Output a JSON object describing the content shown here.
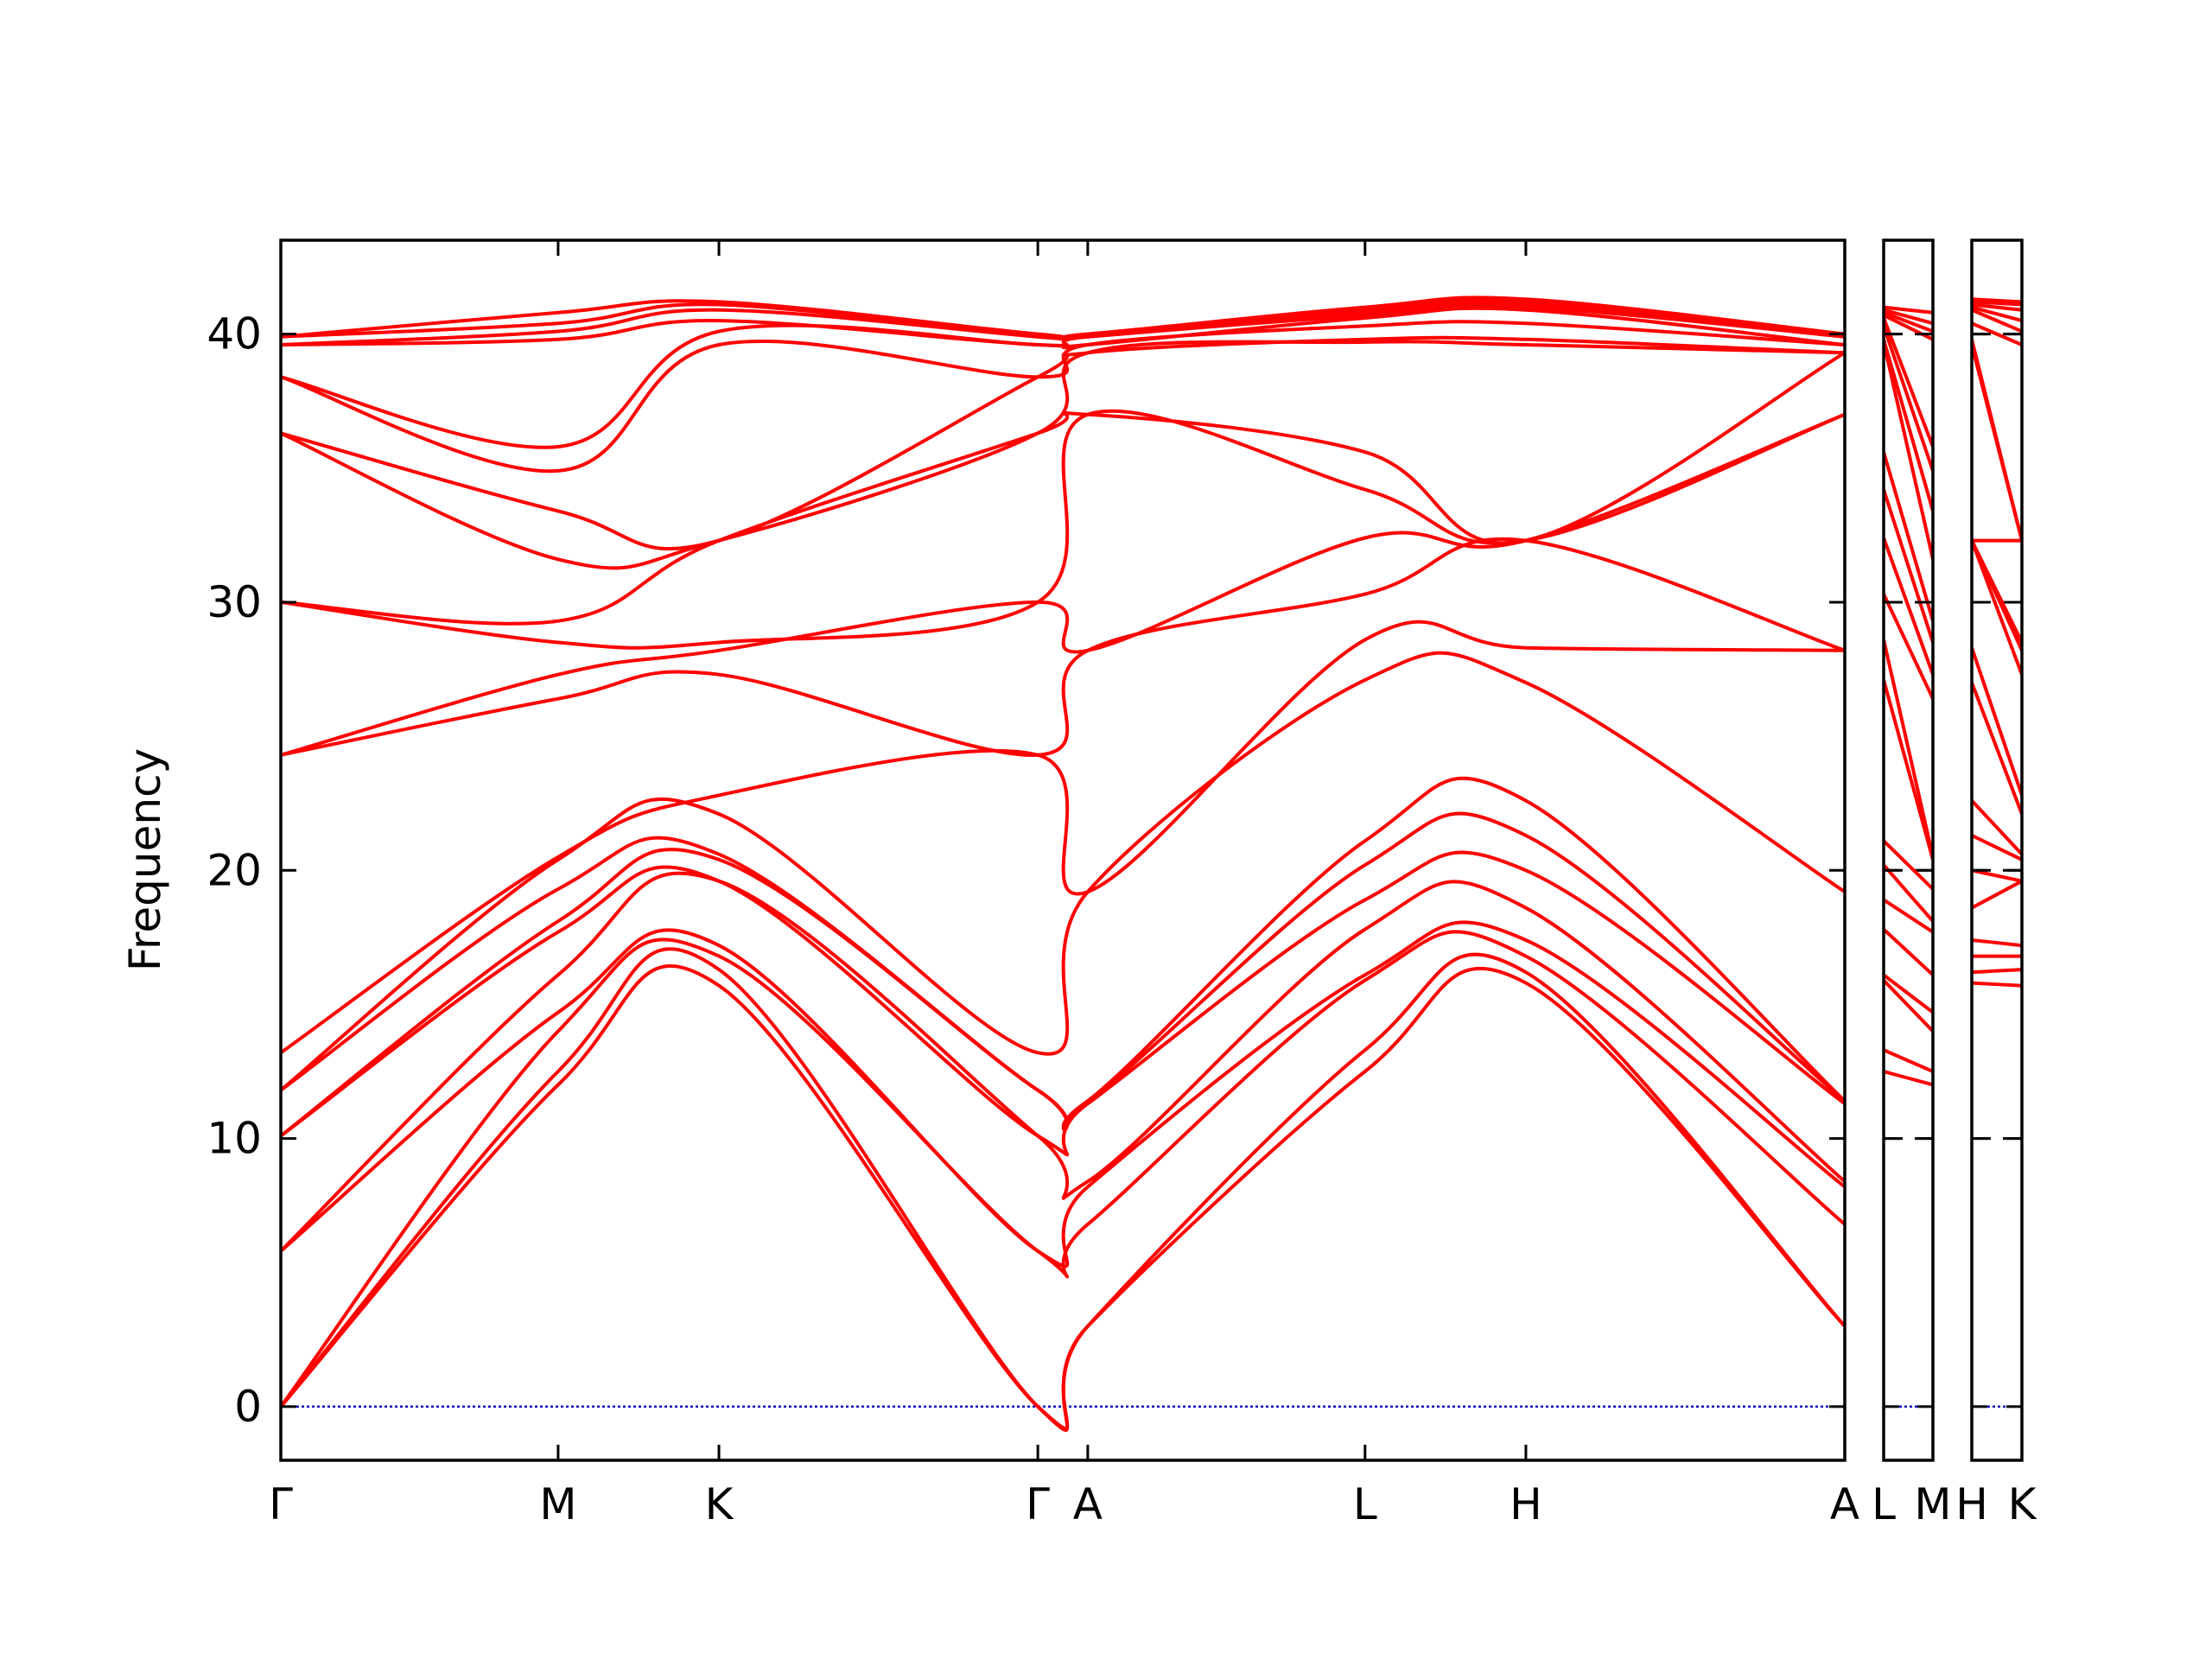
{
  "chart_data": {
    "type": "line",
    "title": "",
    "ylabel": "Frequency",
    "xlabel": "",
    "ylim": [
      -2,
      43.5
    ],
    "y_ticks": [
      "0",
      "10",
      "20",
      "30",
      "40"
    ],
    "y_tick_values": [
      0,
      10,
      20,
      30,
      40
    ],
    "grid": false,
    "band_color": "#ff0000",
    "zero_line_color": "#0000cc",
    "panels": [
      {
        "path": [
          "Γ",
          "M",
          "K",
          "Γ",
          "A",
          "L",
          "H",
          "A"
        ],
        "x_ticks": [
          {
            "label": "Γ",
            "x": 0
          },
          {
            "label": "M",
            "x": 1
          },
          {
            "label": "K",
            "x": 1.58
          },
          {
            "label": "Γ",
            "x": 2.73
          },
          {
            "label": "A",
            "x": 2.91
          },
          {
            "label": "L",
            "x": 3.91
          },
          {
            "label": "H",
            "x": 4.49
          },
          {
            "label": "A",
            "x": 5.64
          }
        ],
        "bands": [
          {
            "x": [
              0,
              1,
              1.58,
              2.73,
              2.91,
              3.91,
              4.49,
              5.64
            ],
            "y": [
              0,
              12,
              15.7,
              0,
              3,
              12.5,
              15.8,
              3
            ]
          },
          {
            "x": [
              0,
              1,
              1.58,
              2.73,
              2.91,
              3.91,
              4.49,
              5.64
            ],
            "y": [
              0,
              12.5,
              16.3,
              0,
              3,
              13.3,
              16.2,
              3
            ]
          },
          {
            "x": [
              0,
              1,
              1.58,
              2.73,
              2.91,
              3.91,
              4.49,
              5.64
            ],
            "y": [
              0,
              14,
              16.8,
              5.8,
              6.8,
              15.9,
              16.8,
              6.8
            ]
          },
          {
            "x": [
              0,
              1,
              1.58,
              2.73,
              2.91,
              3.91,
              4.49,
              5.64
            ],
            "y": [
              5.8,
              14.7,
              17.2,
              5.8,
              8.2,
              16.1,
              17.4,
              8.2
            ]
          },
          {
            "x": [
              0,
              1,
              1.58,
              2.73,
              2.91,
              3.91,
              4.49,
              5.64
            ],
            "y": [
              5.8,
              16.1,
              19.6,
              10.1,
              8.4,
              17.8,
              18.6,
              8.4
            ]
          },
          {
            "x": [
              0,
              1,
              1.58,
              2.73,
              2.91,
              3.91,
              4.49,
              5.64
            ],
            "y": [
              10.1,
              17.7,
              19.6,
              10.1,
              11.3,
              18.9,
              20,
              11.3
            ]
          },
          {
            "x": [
              0,
              1,
              1.58,
              2.73,
              2.91,
              3.91,
              4.49,
              5.64
            ],
            "y": [
              10.1,
              18.1,
              20.4,
              11.8,
              11.4,
              20.2,
              21.3,
              11.4
            ]
          },
          {
            "x": [
              0,
              1,
              1.58,
              2.73,
              2.91,
              3.91,
              4.49,
              5.64
            ],
            "y": [
              11.8,
              19.3,
              20.6,
              11.8,
              11.4,
              21.1,
              22.6,
              11.4
            ]
          },
          {
            "x": [
              0,
              1,
              1.58,
              2.73,
              2.91,
              3.91,
              4.49,
              5.64
            ],
            "y": [
              11.8,
              20.4,
              22.1,
              13.2,
              19.2,
              27.1,
              27,
              19.2
            ]
          },
          {
            "x": [
              0,
              1,
              1.58,
              2.73,
              2.91,
              3.91,
              4.49,
              5.64
            ],
            "y": [
              13.2,
              20.5,
              22.8,
              24.3,
              19.2,
              28.6,
              28.3,
              28.2
            ]
          },
          {
            "x": [
              0,
              1,
              1.58,
              2.73,
              2.91,
              3.91,
              4.49,
              5.64
            ],
            "y": [
              24.3,
              26.4,
              27.3,
              24.3,
              28.2,
              30.3,
              32.3,
              28.2
            ]
          },
          {
            "x": [
              0,
              1,
              1.58,
              2.73,
              2.91,
              3.91,
              4.49,
              5.64
            ],
            "y": [
              24.3,
              27.3,
              28.2,
              30,
              28.2,
              32.4,
              32.3,
              37
            ]
          },
          {
            "x": [
              0,
              1,
              1.58,
              2.73,
              2.91,
              3.91,
              4.49,
              5.64
            ],
            "y": [
              30,
              28.5,
              28.5,
              30,
              37,
              34.2,
              32.3,
              37
            ]
          },
          {
            "x": [
              0,
              1,
              1.58,
              2.73,
              2.91,
              3.91,
              4.49,
              5.64
            ],
            "y": [
              30,
              29.3,
              32.3,
              36.3,
              37,
              35.6,
              32.3,
              39.3
            ]
          },
          {
            "x": [
              0,
              1,
              1.58,
              2.73,
              2.91,
              3.91,
              4.49,
              5.64
            ],
            "y": [
              36.3,
              31.6,
              32.3,
              36.3,
              39.3,
              39.7,
              39.6,
              39.3
            ]
          },
          {
            "x": [
              0,
              1,
              1.58,
              2.73,
              2.91,
              3.91,
              4.49,
              5.64
            ],
            "y": [
              36.3,
              33.4,
              32.3,
              38.4,
              39.3,
              39.8,
              39.8,
              39.3
            ]
          },
          {
            "x": [
              0,
              1,
              1.58,
              2.73,
              2.91,
              3.91,
              4.49,
              5.64
            ],
            "y": [
              38.4,
              34.9,
              39.6,
              38.4,
              39.6,
              40.3,
              40.4,
              39.6
            ]
          },
          {
            "x": [
              0,
              1,
              1.58,
              2.73,
              2.91,
              3.91,
              4.49,
              5.64
            ],
            "y": [
              38.4,
              35.8,
              40.1,
              39.6,
              39.6,
              40.6,
              40.9,
              39.6
            ]
          },
          {
            "x": [
              0,
              1,
              1.58,
              2.73,
              2.91,
              3.91,
              4.49,
              5.64
            ],
            "y": [
              39.6,
              39.8,
              40.5,
              39.6,
              39.9,
              40.7,
              41,
              39.9
            ]
          },
          {
            "x": [
              0,
              1,
              1.58,
              2.73,
              2.91,
              3.91,
              4.49,
              5.64
            ],
            "y": [
              39.6,
              40.1,
              40.9,
              39.9,
              39.9,
              40.8,
              41.1,
              39.9
            ]
          },
          {
            "x": [
              0,
              1,
              1.58,
              2.73,
              2.91,
              3.91,
              4.49,
              5.64
            ],
            "y": [
              39.9,
              40.4,
              41.1,
              39.9,
              40,
              40.9,
              41.2,
              40
            ]
          },
          {
            "x": [
              0,
              1,
              1.58,
              2.73,
              2.91,
              3.91,
              4.49,
              5.64
            ],
            "y": [
              39.9,
              40.8,
              41.2,
              40,
              40,
              41,
              41.3,
              40
            ]
          }
        ]
      },
      {
        "path": [
          "L",
          "M"
        ],
        "x_ticks": [
          {
            "label": "L",
            "x": 0
          },
          {
            "label": "M",
            "x": 0.18
          }
        ],
        "bands": [
          {
            "x": [
              0,
              0.18
            ],
            "y": [
              12.5,
              12
            ]
          },
          {
            "x": [
              0,
              0.18
            ],
            "y": [
              13.3,
              12.5
            ]
          },
          {
            "x": [
              0,
              0.18
            ],
            "y": [
              15.9,
              14
            ]
          },
          {
            "x": [
              0,
              0.18
            ],
            "y": [
              16.1,
              14.7
            ]
          },
          {
            "x": [
              0,
              0.18
            ],
            "y": [
              17.8,
              16.1
            ]
          },
          {
            "x": [
              0,
              0.18
            ],
            "y": [
              18.9,
              17.7
            ]
          },
          {
            "x": [
              0,
              0.18
            ],
            "y": [
              20.2,
              18.1
            ]
          },
          {
            "x": [
              0,
              0.18
            ],
            "y": [
              21.1,
              19.3
            ]
          },
          {
            "x": [
              0,
              0.18
            ],
            "y": [
              27.1,
              20.4
            ]
          },
          {
            "x": [
              0,
              0.18
            ],
            "y": [
              28.6,
              20.5
            ]
          },
          {
            "x": [
              0,
              0.18
            ],
            "y": [
              30.3,
              26.4
            ]
          },
          {
            "x": [
              0,
              0.18
            ],
            "y": [
              32.4,
              27.3
            ]
          },
          {
            "x": [
              0,
              0.18
            ],
            "y": [
              34.2,
              28.5
            ]
          },
          {
            "x": [
              0,
              0.18
            ],
            "y": [
              35.6,
              29.3
            ]
          },
          {
            "x": [
              0,
              0.18
            ],
            "y": [
              39.7,
              31.6
            ]
          },
          {
            "x": [
              0,
              0.18
            ],
            "y": [
              39.8,
              33.4
            ]
          },
          {
            "x": [
              0,
              0.18
            ],
            "y": [
              40.3,
              34.9
            ]
          },
          {
            "x": [
              0,
              0.18
            ],
            "y": [
              40.6,
              35.8
            ]
          },
          {
            "x": [
              0,
              0.18
            ],
            "y": [
              40.7,
              39.8
            ]
          },
          {
            "x": [
              0,
              0.18
            ],
            "y": [
              40.8,
              40.1
            ]
          },
          {
            "x": [
              0,
              0.18
            ],
            "y": [
              40.9,
              40.4
            ]
          },
          {
            "x": [
              0,
              0.18
            ],
            "y": [
              41,
              40.8
            ]
          }
        ]
      },
      {
        "path": [
          "H",
          "K"
        ],
        "x_ticks": [
          {
            "label": "H",
            "x": 0
          },
          {
            "label": "K",
            "x": 0.18
          }
        ],
        "bands": [
          {
            "x": [
              0,
              0.18
            ],
            "y": [
              15.8,
              15.7
            ]
          },
          {
            "x": [
              0,
              0.18
            ],
            "y": [
              16.2,
              16.3
            ]
          },
          {
            "x": [
              0,
              0.18
            ],
            "y": [
              16.8,
              16.8
            ]
          },
          {
            "x": [
              0,
              0.18
            ],
            "y": [
              17.4,
              17.2
            ]
          },
          {
            "x": [
              0,
              0.18
            ],
            "y": [
              18.6,
              19.6
            ]
          },
          {
            "x": [
              0,
              0.18
            ],
            "y": [
              20,
              19.6
            ]
          },
          {
            "x": [
              0,
              0.18
            ],
            "y": [
              21.3,
              20.4
            ]
          },
          {
            "x": [
              0,
              0.18
            ],
            "y": [
              22.6,
              20.6
            ]
          },
          {
            "x": [
              0,
              0.18
            ],
            "y": [
              27,
              22.1
            ]
          },
          {
            "x": [
              0,
              0.18
            ],
            "y": [
              28.3,
              22.8
            ]
          },
          {
            "x": [
              0,
              0.18
            ],
            "y": [
              32.3,
              27.3
            ]
          },
          {
            "x": [
              0,
              0.18
            ],
            "y": [
              32.3,
              28.2
            ]
          },
          {
            "x": [
              0,
              0.18
            ],
            "y": [
              32.3,
              28.5
            ]
          },
          {
            "x": [
              0,
              0.18
            ],
            "y": [
              32.3,
              32.3
            ]
          },
          {
            "x": [
              0,
              0.18
            ],
            "y": [
              39.6,
              32.3
            ]
          },
          {
            "x": [
              0,
              0.18
            ],
            "y": [
              39.8,
              32.3
            ]
          },
          {
            "x": [
              0,
              0.18
            ],
            "y": [
              40.4,
              39.6
            ]
          },
          {
            "x": [
              0,
              0.18
            ],
            "y": [
              40.9,
              40.1
            ]
          },
          {
            "x": [
              0,
              0.18
            ],
            "y": [
              41,
              40.5
            ]
          },
          {
            "x": [
              0,
              0.18
            ],
            "y": [
              41.1,
              40.9
            ]
          },
          {
            "x": [
              0,
              0.18
            ],
            "y": [
              41.2,
              41.1
            ]
          },
          {
            "x": [
              0,
              0.18
            ],
            "y": [
              41.3,
              41.2
            ]
          }
        ]
      }
    ]
  }
}
